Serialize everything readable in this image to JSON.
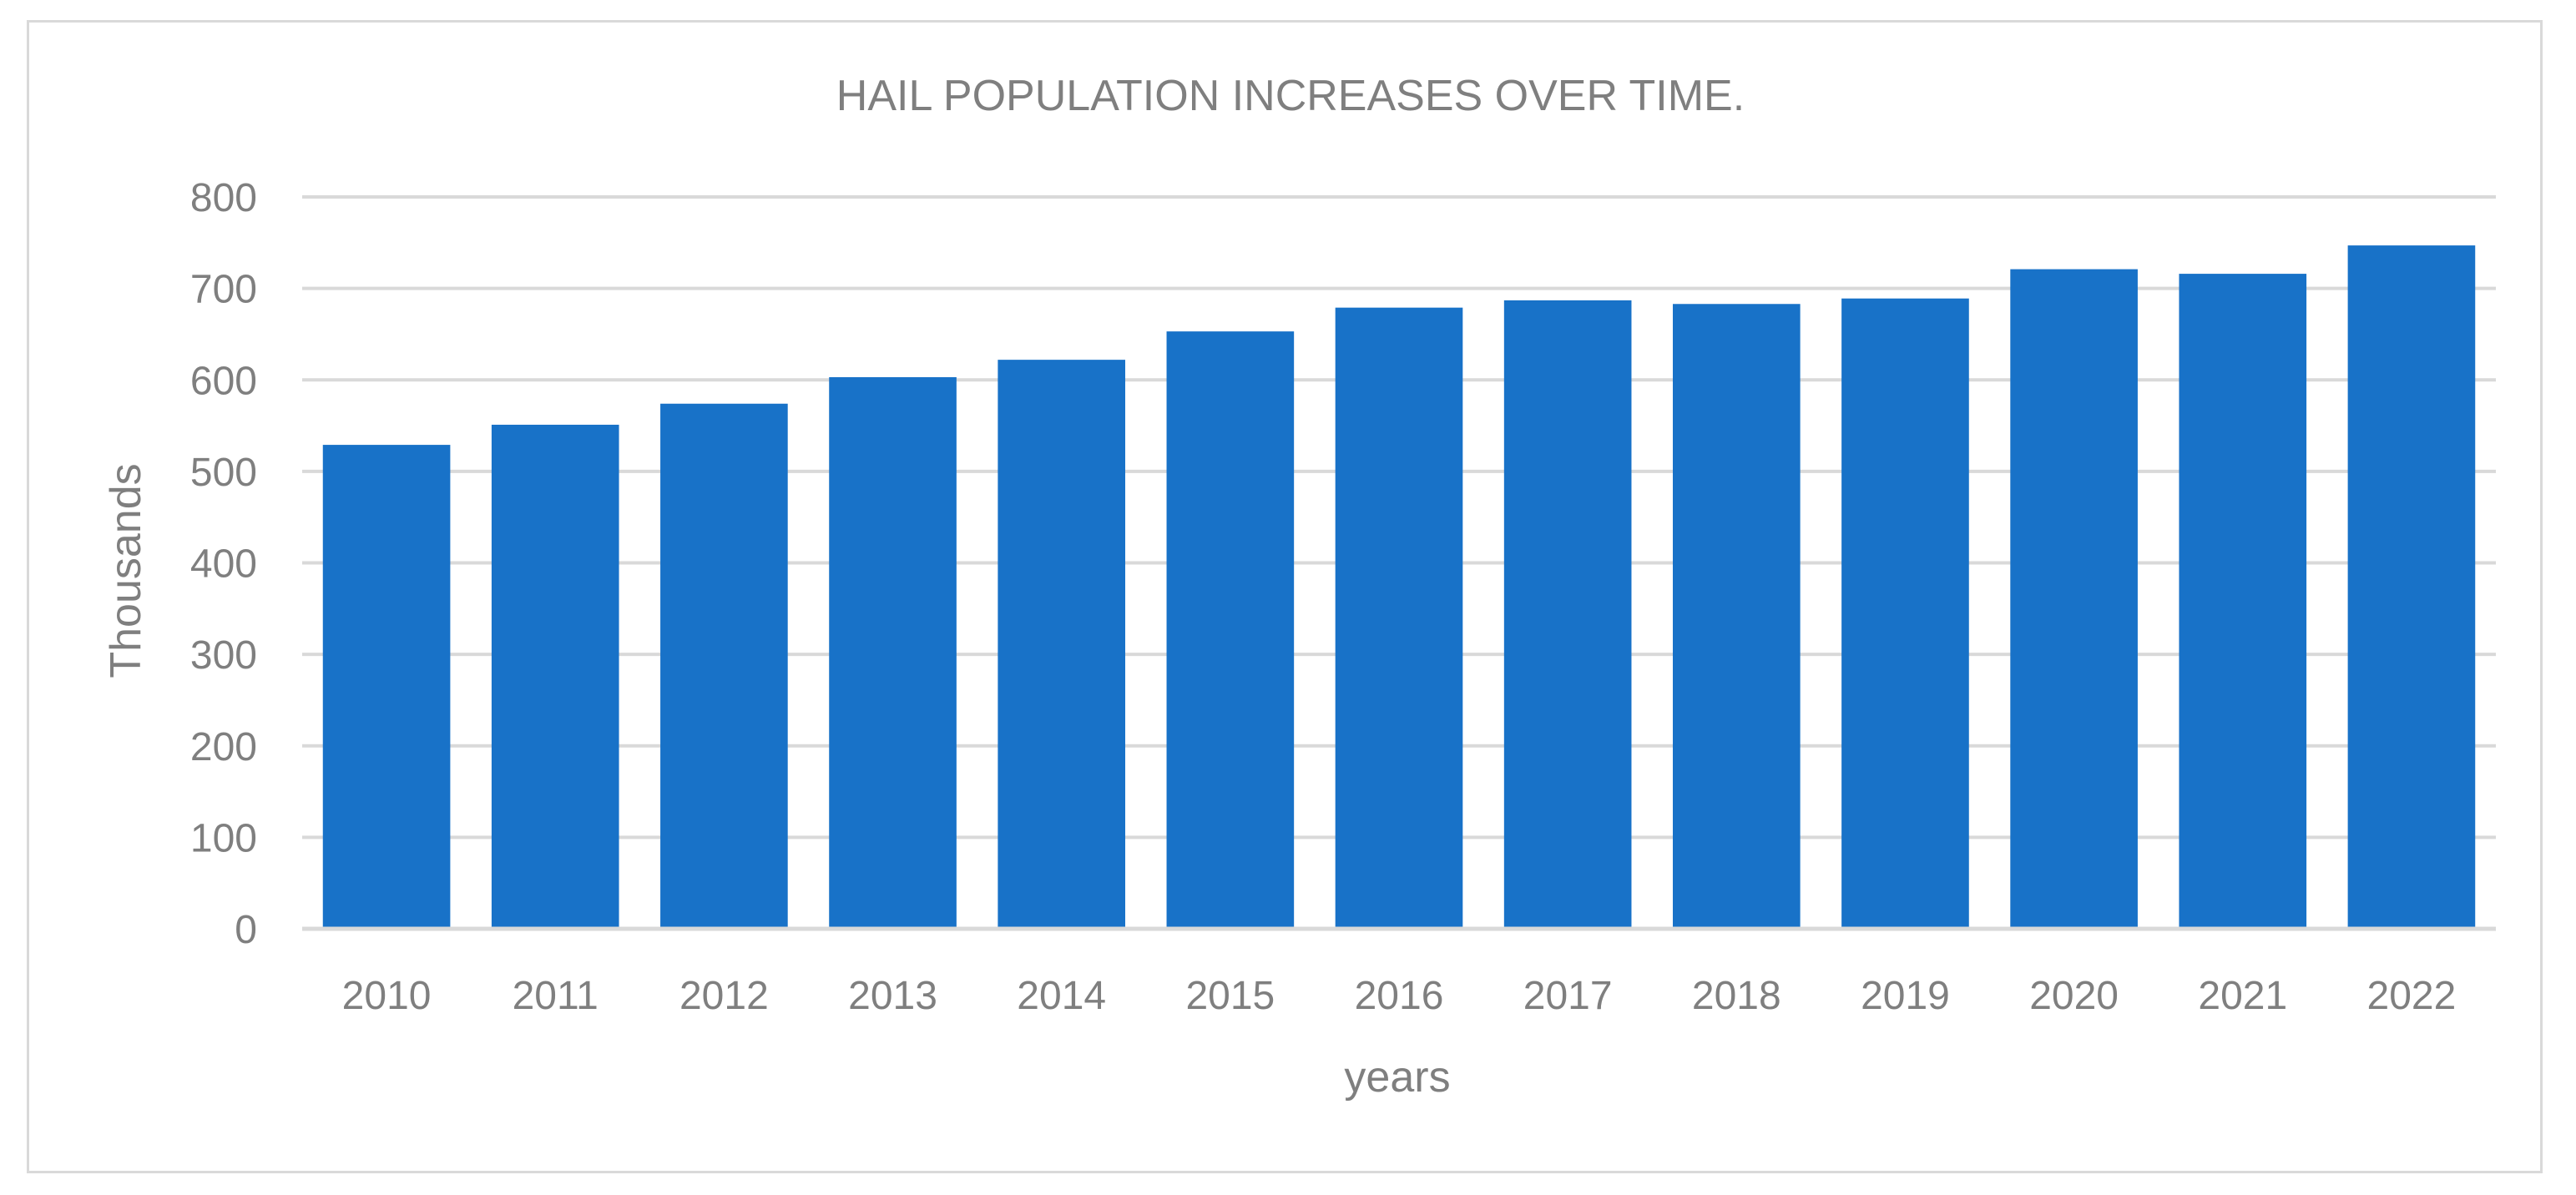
{
  "chart_data": {
    "type": "bar",
    "title": "HAIL POPULATION INCREASES OVER TIME.",
    "xlabel": "years",
    "ylabel": "Thousands",
    "categories": [
      "2010",
      "2011",
      "2012",
      "2013",
      "2014",
      "2015",
      "2016",
      "2017",
      "2018",
      "2019",
      "2020",
      "2021",
      "2022"
    ],
    "values": [
      529,
      551,
      574,
      603,
      622,
      653,
      679,
      687,
      683,
      689,
      721,
      716,
      747
    ],
    "ylim": [
      0,
      800
    ],
    "yticks": [
      0,
      100,
      200,
      300,
      400,
      500,
      600,
      700,
      800
    ],
    "grid": true,
    "legend": "none",
    "colors": {
      "bar": "#1872c8",
      "grid": "#d9d9d9",
      "text": "#7f7f7f",
      "border": "#d9d9d9"
    }
  }
}
